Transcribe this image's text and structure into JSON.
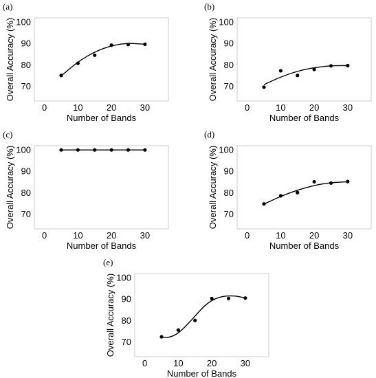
{
  "chart_data": [
    {
      "panel": "(a)",
      "type": "scatter",
      "xlabel": "Number of Bands",
      "ylabel": "Overall Accuracy (%)",
      "xlim": [
        -3,
        37
      ],
      "ylim": [
        63,
        102
      ],
      "xticks": [
        0,
        10,
        20,
        30
      ],
      "yticks": [
        70,
        80,
        90,
        100
      ],
      "grid": false,
      "x": [
        5,
        10,
        15,
        20,
        25,
        30
      ],
      "y": [
        75,
        80.7,
        84.5,
        89.2,
        89.5,
        89.6
      ],
      "trend": {
        "type": "polynomial",
        "x": [
          5,
          10,
          15,
          20,
          25,
          30
        ],
        "y": [
          74.8,
          81.2,
          85.9,
          88.8,
          90.0,
          89.6
        ]
      }
    },
    {
      "panel": "(b)",
      "type": "scatter",
      "xlabel": "Number of Bands",
      "ylabel": "Overall Accuracy (%)",
      "xlim": [
        -3,
        37
      ],
      "ylim": [
        63,
        102
      ],
      "xticks": [
        0,
        10,
        20,
        30
      ],
      "yticks": [
        70,
        80,
        90,
        100
      ],
      "grid": false,
      "x": [
        5,
        10,
        15,
        20,
        25,
        30
      ],
      "y": [
        69.5,
        77.2,
        75,
        77.8,
        79.5,
        79.6
      ],
      "trend": {
        "type": "polynomial",
        "x": [
          5,
          10,
          15,
          20,
          25,
          30
        ],
        "y": [
          70.7,
          74.2,
          76.9,
          78.6,
          79.5,
          79.6
        ]
      }
    },
    {
      "panel": "(c)",
      "type": "scatter",
      "xlabel": "Number of Bands",
      "ylabel": "Overall Accuracy (%)",
      "xlim": [
        -3,
        37
      ],
      "ylim": [
        63,
        102
      ],
      "xticks": [
        0,
        10,
        20,
        30
      ],
      "yticks": [
        70,
        80,
        90,
        100
      ],
      "grid": false,
      "x": [
        5,
        10,
        15,
        20,
        25,
        30
      ],
      "y": [
        100,
        100,
        100,
        100,
        100,
        100
      ],
      "trend": {
        "type": "polynomial",
        "x": [
          5,
          10,
          15,
          20,
          25,
          30
        ],
        "y": [
          100,
          100,
          100,
          100,
          100,
          100
        ]
      }
    },
    {
      "panel": "(d)",
      "type": "scatter",
      "xlabel": "Number of Bands",
      "ylabel": "Overall Accuracy (%)",
      "xlim": [
        -3,
        37
      ],
      "ylim": [
        63,
        102
      ],
      "xticks": [
        0,
        10,
        20,
        30
      ],
      "yticks": [
        70,
        80,
        90,
        100
      ],
      "grid": false,
      "x": [
        5,
        10,
        15,
        20,
        25,
        30
      ],
      "y": [
        74.7,
        78.5,
        80,
        85.1,
        84.5,
        85.2
      ],
      "trend": {
        "type": "polynomial",
        "x": [
          5,
          10,
          15,
          20,
          25,
          30
        ],
        "y": [
          74.6,
          78.2,
          81.1,
          83.3,
          84.6,
          85.1
        ]
      }
    },
    {
      "panel": "(e)",
      "type": "scatter",
      "xlabel": "Number of Bands",
      "ylabel": "Overall Accuracy (%)",
      "xlim": [
        -3,
        37
      ],
      "ylim": [
        63,
        102
      ],
      "xticks": [
        0,
        10,
        20,
        30
      ],
      "yticks": [
        70,
        80,
        90,
        100
      ],
      "grid": false,
      "x": [
        5,
        10,
        15,
        20,
        25,
        30
      ],
      "y": [
        72.3,
        75.5,
        80,
        90.3,
        90.3,
        90.5
      ],
      "trend": {
        "type": "spline",
        "x": [
          5,
          6,
          8,
          10,
          12,
          14,
          16,
          18,
          20,
          22,
          24,
          26,
          28,
          30
        ],
        "y": [
          72.3,
          72.0,
          72.5,
          74.2,
          77.0,
          80.3,
          83.8,
          87.0,
          89.3,
          90.7,
          91.4,
          91.5,
          91.2,
          90.5
        ]
      }
    }
  ]
}
